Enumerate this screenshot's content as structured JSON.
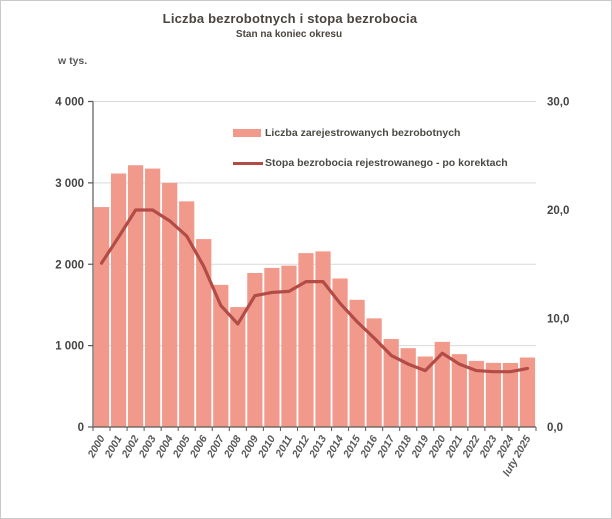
{
  "header": {
    "title": "Liczba bezrobotnych i stopa bezrobocia",
    "subtitle": "Stan na koniec okresu",
    "unit_label": "w tys."
  },
  "legend": [
    {
      "label": "Liczba zarejestrowanych bezrobotnych",
      "swatch": "bar-swatch",
      "color": "#f19a8c"
    },
    {
      "label": "Stopa bezrobocia rejestrowanego - po korektach",
      "swatch": "line-swatch",
      "color": "#b34b46"
    }
  ],
  "colors": {
    "bar": "#f19a8c",
    "line": "#b34b46",
    "grid": "#d9d9d9",
    "axis": "#595959",
    "title_text": "#4a443e",
    "y_label_text": "#454545",
    "x_label_text": "#595959"
  },
  "chart_data": {
    "type": "bar+line",
    "title": "Liczba bezrobotnych i stopa bezrobocia",
    "subtitle": "Stan na koniec okresu",
    "legend_position": "top-inside",
    "grid": "horizontal-left-ticks",
    "categories": [
      "2000",
      "2001",
      "2002",
      "2003",
      "2004",
      "2005",
      "2006",
      "2007",
      "2008",
      "2009",
      "2010",
      "2011",
      "2012",
      "2013",
      "2014",
      "2015",
      "2016",
      "2017",
      "2018",
      "2019",
      "2020",
      "2021",
      "2022",
      "2023",
      "2024",
      "luty 2025"
    ],
    "series": [
      {
        "name": "Liczba zarejestrowanych bezrobotnych",
        "type": "bar",
        "axis": "left",
        "unit": "tys.",
        "values": [
          2702.6,
          3115.1,
          3217.0,
          3175.7,
          2999.6,
          2773.0,
          2309.4,
          1746.6,
          1473.8,
          1892.7,
          1954.7,
          1982.7,
          2136.8,
          2157.9,
          1825.2,
          1563.3,
          1335.2,
          1081.7,
          968.9,
          866.4,
          1046.4,
          895.2,
          812.3,
          788.2,
          786.5,
          853.9
        ]
      },
      {
        "name": "Stopa bezrobocia rejestrowanego - po korektach",
        "type": "line",
        "axis": "right",
        "unit": "%",
        "values": [
          15.1,
          17.5,
          20.0,
          20.0,
          19.0,
          17.6,
          14.8,
          11.2,
          9.5,
          12.1,
          12.4,
          12.5,
          13.4,
          13.4,
          11.4,
          9.7,
          8.2,
          6.6,
          5.8,
          5.2,
          6.8,
          5.8,
          5.2,
          5.1,
          5.1,
          5.4
        ]
      }
    ],
    "left_axis": {
      "label": "w tys.",
      "min": 0,
      "max": 4000,
      "ticks": [
        {
          "label": "0",
          "value": 0
        },
        {
          "label": "1 000",
          "value": 1000
        },
        {
          "label": "2 000",
          "value": 2000
        },
        {
          "label": "3 000",
          "value": 3000
        },
        {
          "label": "4 000",
          "value": 4000
        }
      ]
    },
    "right_axis": {
      "min": 0,
      "max": 30,
      "ticks": [
        {
          "label": "0,0",
          "value": 0
        },
        {
          "label": "10,0",
          "value": 10
        },
        {
          "label": "20,0",
          "value": 20
        },
        {
          "label": "30,0",
          "value": 30
        }
      ]
    }
  }
}
